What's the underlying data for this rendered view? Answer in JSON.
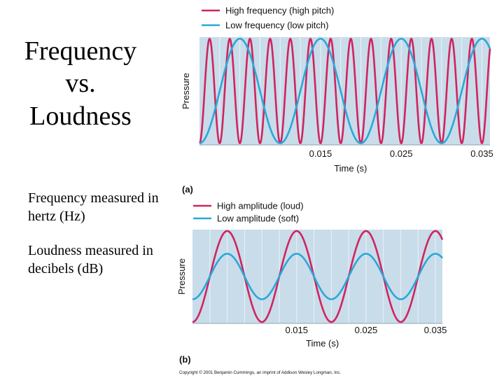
{
  "slide": {
    "title_lines": [
      "Frequency",
      "vs.",
      "Loudness"
    ],
    "bullets": [
      "Frequency measured in hertz (Hz)",
      "Loudness measured in decibels (dB)"
    ],
    "credit": "Copyright © 2001 Benjamin Cummings, an imprint of Addison Wesley Longman, Inc."
  },
  "colors": {
    "high": "#d0245f",
    "low": "#2aa8d8",
    "plot_bg": "#c9dcea",
    "grid": "#e8f0f6"
  },
  "chart_data": [
    {
      "type": "line",
      "panel_label": "(a)",
      "xlabel": "Time (s)",
      "ylabel": "Pressure",
      "xlim": [
        0,
        0.036
      ],
      "ylim": [
        -1,
        1
      ],
      "xticks": [
        0.015,
        0.025,
        0.035
      ],
      "xtick_labels": [
        "0.015",
        "0.025",
        "0.035"
      ],
      "grid": true,
      "legend_position": "top",
      "series": [
        {
          "name": "High frequency (high pitch)",
          "color_key": "high",
          "amplitude": 1.0,
          "frequency_hz": 400,
          "phase_deg": -90
        },
        {
          "name": "Low frequency (low pitch)",
          "color_key": "low",
          "amplitude": 1.0,
          "frequency_hz": 100,
          "phase_deg": -90
        }
      ]
    },
    {
      "type": "line",
      "panel_label": "(b)",
      "xlabel": "Time (s)",
      "ylabel": "Pressure",
      "xlim": [
        0,
        0.036
      ],
      "ylim": [
        -1,
        1
      ],
      "xticks": [
        0.015,
        0.025,
        0.035
      ],
      "xtick_labels": [
        "0.015",
        "0.025",
        "0.035"
      ],
      "grid": true,
      "legend_position": "top",
      "series": [
        {
          "name": "High amplitude (loud)",
          "color_key": "high",
          "amplitude": 1.0,
          "frequency_hz": 100,
          "phase_deg": -90
        },
        {
          "name": "Low amplitude (soft)",
          "color_key": "low",
          "amplitude": 0.5,
          "frequency_hz": 100,
          "phase_deg": -90
        }
      ]
    }
  ]
}
